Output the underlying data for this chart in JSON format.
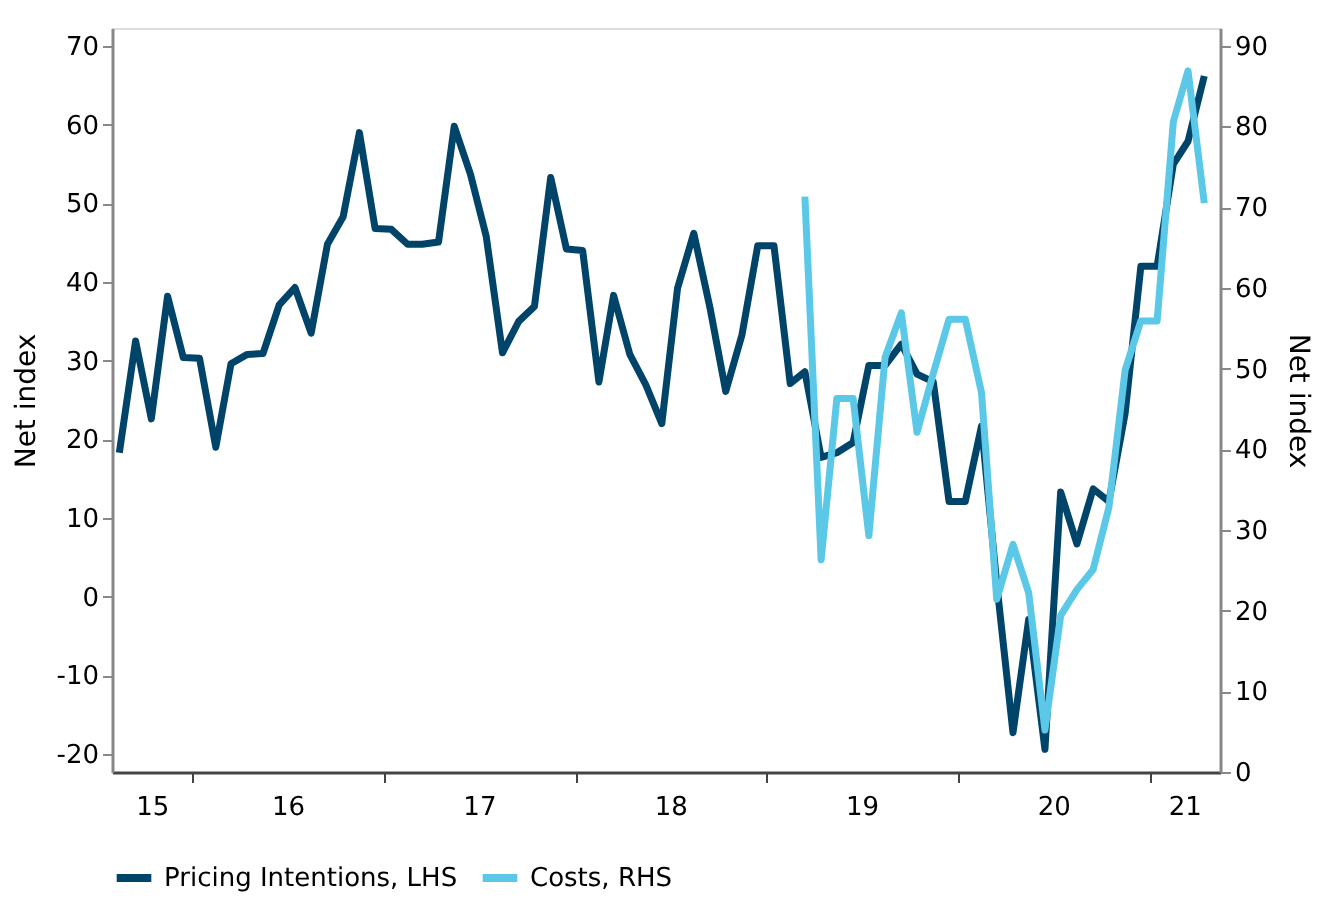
{
  "chart_data": {
    "type": "line",
    "ylabel": "Net index",
    "y2label": "Net index",
    "x": [
      "2015-08-15",
      "2015-09-15",
      "2015-10-15",
      "2015-11-15",
      "2015-12-15",
      "2016-01-15",
      "2016-02-15",
      "2016-03-15",
      "2016-04-15",
      "2016-05-15",
      "2016-06-15",
      "2016-07-15",
      "2016-08-15",
      "2016-09-15",
      "2016-10-15",
      "2016-11-15",
      "2016-12-15",
      "2017-01-15",
      "2017-02-15",
      "2017-03-15",
      "2017-04-15",
      "2017-05-15",
      "2017-06-15",
      "2017-07-15",
      "2017-08-15",
      "2017-09-15",
      "2017-10-15",
      "2017-11-15",
      "2017-12-15",
      "2018-01-15",
      "2018-02-15",
      "2018-03-15",
      "2018-04-15",
      "2018-05-15",
      "2018-06-15",
      "2018-07-15",
      "2018-08-15",
      "2018-09-15",
      "2018-10-15",
      "2018-11-15",
      "2018-12-15",
      "2019-01-15",
      "2019-02-15",
      "2019-03-15",
      "2019-04-15",
      "2019-05-15",
      "2019-06-15",
      "2019-07-15",
      "2019-08-15",
      "2019-09-15",
      "2019-10-15",
      "2019-11-15",
      "2019-12-15",
      "2020-01-15",
      "2020-02-15",
      "2020-03-15",
      "2020-04-15",
      "2020-05-15",
      "2020-06-15",
      "2020-07-15",
      "2020-08-15",
      "2020-09-15",
      "2020-10-15",
      "2020-11-15",
      "2020-12-15",
      "2021-01-15",
      "2021-02-15",
      "2021-03-15",
      "2021-04-15"
    ],
    "series": [
      {
        "name": "Pricing Intentions, LHS",
        "color": "#00446a",
        "values": [
          18.3,
          32.5,
          22.6,
          38.2,
          30.4,
          30.3,
          19,
          29.6,
          30.8,
          30.9,
          37.1,
          39.3,
          33.5,
          44.8,
          48.3,
          59,
          46.8,
          46.7,
          44.8,
          44.8,
          45.1,
          59.8,
          53.7,
          45.8,
          31,
          35,
          36.9,
          53.3,
          44.2,
          44,
          27.3,
          38.3,
          30.8,
          27,
          22,
          39.2,
          46.2,
          36.7,
          26.1,
          33.3,
          44.6,
          44.6,
          27.1,
          28.6,
          17.7,
          18.3,
          19.6,
          29.4,
          29.4,
          32.1,
          28.3,
          27.3,
          12.1,
          12.1,
          21.7,
          1.7,
          -17.3,
          -2.9,
          -19.4,
          13.3,
          6.7,
          13.7,
          12.1,
          23.3,
          42,
          42,
          55,
          57.9,
          66.2
        ]
      },
      {
        "name": "Costs, RHS",
        "color": "#5bc8e8",
        "axis": "y2",
        "values": [
          null,
          null,
          null,
          null,
          null,
          null,
          null,
          null,
          null,
          null,
          null,
          null,
          null,
          null,
          null,
          null,
          null,
          null,
          null,
          null,
          null,
          null,
          null,
          null,
          null,
          null,
          null,
          null,
          null,
          null,
          null,
          null,
          null,
          null,
          null,
          null,
          null,
          null,
          null,
          null,
          null,
          null,
          null,
          71.3,
          26.3,
          46.3,
          46.3,
          29.3,
          51.4,
          56.9,
          42.1,
          49.4,
          56.1,
          56.1,
          47,
          21.4,
          28.2,
          22.2,
          5.2,
          19.4,
          22.6,
          25.1,
          32.8,
          49.8,
          55.9,
          55.9,
          80.6,
          86.9,
          70.5
        ]
      }
    ],
    "xlim": [
      "2015-08-01",
      "2021-05-15"
    ],
    "xticks": [
      {
        "value": "2016-01-01",
        "label": null
      },
      {
        "value": "2017-01-01",
        "label": null
      },
      {
        "value": "2018-01-01",
        "label": null
      },
      {
        "value": "2019-01-01",
        "label": null
      },
      {
        "value": "2020-01-01",
        "label": null
      },
      {
        "value": "2021-01-01",
        "label": null
      },
      {
        "value": "2015-10-16",
        "label": "15"
      },
      {
        "value": "2016-07-01",
        "label": "16"
      },
      {
        "value": "2017-07-01",
        "label": "17"
      },
      {
        "value": "2018-07-01",
        "label": "18"
      },
      {
        "value": "2019-07-01",
        "label": "19"
      },
      {
        "value": "2020-07-01",
        "label": "20"
      },
      {
        "value": "2021-03-08",
        "label": "21"
      }
    ],
    "ylim": [
      -22.3,
      72.3
    ],
    "yticks": [
      -20,
      -10,
      0,
      10,
      20,
      30,
      40,
      50,
      60,
      70
    ],
    "y2lim": [
      0,
      92.2
    ],
    "y2ticks": [
      0,
      10,
      20,
      30,
      40,
      50,
      60,
      70,
      80,
      90
    ],
    "grid": false,
    "legend": "bottom",
    "marker": "none",
    "line_style": "solid"
  }
}
